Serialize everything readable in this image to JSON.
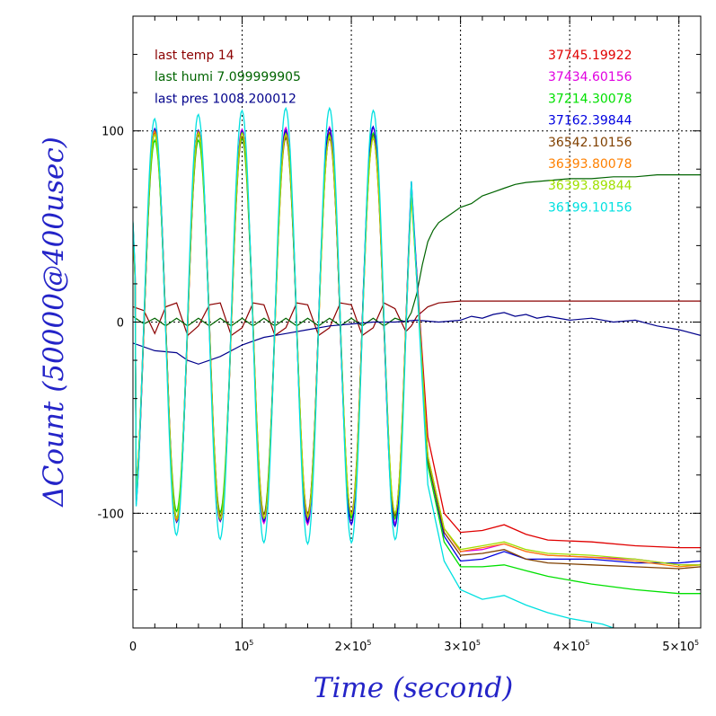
{
  "chart_data": {
    "type": "line",
    "xlabel": "Time (second)",
    "ylabel": "ΔCount (50000@400usec)",
    "xlim": [
      0,
      520000
    ],
    "ylim": [
      -160,
      160
    ],
    "grid": true,
    "x_ticks": [
      {
        "value": 0,
        "base": "0",
        "exp": ""
      },
      {
        "value": 100000,
        "base": "10",
        "exp": "5"
      },
      {
        "value": 200000,
        "base": "2×10",
        "exp": "5"
      },
      {
        "value": 300000,
        "base": "3×10",
        "exp": "5"
      },
      {
        "value": 400000,
        "base": "4×10",
        "exp": "5"
      },
      {
        "value": 500000,
        "base": "5×10",
        "exp": "5"
      }
    ],
    "y_ticks": [
      {
        "value": 100,
        "label": "100"
      },
      {
        "value": 0,
        "label": "0"
      },
      {
        "value": -100,
        "label": "-100"
      }
    ],
    "annotations": [
      {
        "text": "last temp 14",
        "color": "#8b0000"
      },
      {
        "text": "last humi 7.099999905",
        "color": "#006400"
      },
      {
        "text": "last pres 1008.200012",
        "color": "#00008b"
      }
    ],
    "oscillation": {
      "period": 40000,
      "phase_peak": 20000,
      "end_x": 255000
    },
    "series": [
      {
        "name": "37745.19922",
        "color": "#e00000",
        "amp": 100,
        "jitter": 2,
        "tail": [
          [
            270000,
            -60
          ],
          [
            285000,
            -100
          ],
          [
            300000,
            -110
          ],
          [
            320000,
            -109
          ],
          [
            340000,
            -106
          ],
          [
            360000,
            -111
          ],
          [
            380000,
            -114
          ],
          [
            420000,
            -115
          ],
          [
            460000,
            -117
          ],
          [
            500000,
            -118
          ],
          [
            520000,
            -118
          ]
        ]
      },
      {
        "name": "37434.60156",
        "color": "#e000e0",
        "amp": 102,
        "jitter": 2,
        "tail": [
          [
            270000,
            -70
          ],
          [
            285000,
            -108
          ],
          [
            300000,
            -120
          ],
          [
            320000,
            -119
          ],
          [
            340000,
            -116
          ],
          [
            360000,
            -120
          ],
          [
            380000,
            -122
          ],
          [
            420000,
            -123
          ],
          [
            460000,
            -124
          ],
          [
            500000,
            -127
          ],
          [
            520000,
            -127
          ]
        ]
      },
      {
        "name": "37214.30078",
        "color": "#00e000",
        "amp": 99,
        "jitter": 2,
        "tail": [
          [
            270000,
            -75
          ],
          [
            285000,
            -115
          ],
          [
            300000,
            -128
          ],
          [
            320000,
            -128
          ],
          [
            340000,
            -127
          ],
          [
            360000,
            -130
          ],
          [
            380000,
            -133
          ],
          [
            420000,
            -137
          ],
          [
            460000,
            -140
          ],
          [
            500000,
            -142
          ],
          [
            520000,
            -142
          ]
        ]
      },
      {
        "name": "37162.39844",
        "color": "#0000e0",
        "amp": 104,
        "jitter": 2,
        "tail": [
          [
            270000,
            -72
          ],
          [
            285000,
            -112
          ],
          [
            300000,
            -125
          ],
          [
            320000,
            -124
          ],
          [
            340000,
            -120
          ],
          [
            360000,
            -124
          ],
          [
            380000,
            -124
          ],
          [
            420000,
            -124
          ],
          [
            460000,
            -126
          ],
          [
            500000,
            -126
          ],
          [
            520000,
            -125
          ]
        ]
      },
      {
        "name": "36542.10156",
        "color": "#804000",
        "amp": 100,
        "jitter": 2,
        "tail": [
          [
            270000,
            -72
          ],
          [
            285000,
            -110
          ],
          [
            300000,
            -122
          ],
          [
            320000,
            -121
          ],
          [
            340000,
            -119
          ],
          [
            360000,
            -124
          ],
          [
            380000,
            -126
          ],
          [
            420000,
            -127
          ],
          [
            460000,
            -128
          ],
          [
            500000,
            -129
          ],
          [
            520000,
            -128
          ]
        ]
      },
      {
        "name": "36393.80078",
        "color": "#ff8000",
        "amp": 100,
        "jitter": 2,
        "tail": [
          [
            270000,
            -70
          ],
          [
            285000,
            -108
          ],
          [
            300000,
            -120
          ],
          [
            320000,
            -118
          ],
          [
            340000,
            -116
          ],
          [
            360000,
            -120
          ],
          [
            380000,
            -122
          ],
          [
            420000,
            -123
          ],
          [
            460000,
            -125
          ],
          [
            500000,
            -128
          ],
          [
            520000,
            -127
          ]
        ]
      },
      {
        "name": "36393.89844",
        "color": "#a0e000",
        "amp": 99,
        "jitter": 2,
        "tail": [
          [
            270000,
            -70
          ],
          [
            285000,
            -108
          ],
          [
            300000,
            -119
          ],
          [
            320000,
            -117
          ],
          [
            340000,
            -115
          ],
          [
            360000,
            -119
          ],
          [
            380000,
            -121
          ],
          [
            420000,
            -122
          ],
          [
            460000,
            -124
          ],
          [
            500000,
            -127
          ],
          [
            520000,
            -127
          ]
        ]
      },
      {
        "name": "36199.10156",
        "color": "#00e0e0",
        "amp": 110,
        "jitter": 4,
        "tail": [
          [
            270000,
            -85
          ],
          [
            285000,
            -125
          ],
          [
            300000,
            -140
          ],
          [
            320000,
            -145
          ],
          [
            340000,
            -143
          ],
          [
            360000,
            -148
          ],
          [
            380000,
            -152
          ],
          [
            400000,
            -155
          ],
          [
            430000,
            -158
          ],
          [
            440000,
            -160
          ]
        ]
      }
    ],
    "env_series": [
      {
        "label": "temp",
        "color": "#8b0000",
        "points": [
          [
            0,
            8
          ],
          [
            10000,
            6
          ],
          [
            20000,
            -6
          ],
          [
            30000,
            8
          ],
          [
            40000,
            10
          ],
          [
            50000,
            -7
          ],
          [
            60000,
            -2
          ],
          [
            70000,
            9
          ],
          [
            80000,
            10
          ],
          [
            90000,
            -7
          ],
          [
            100000,
            -3
          ],
          [
            110000,
            10
          ],
          [
            120000,
            9
          ],
          [
            130000,
            -7
          ],
          [
            140000,
            -3
          ],
          [
            150000,
            10
          ],
          [
            160000,
            9
          ],
          [
            170000,
            -7
          ],
          [
            180000,
            -3
          ],
          [
            190000,
            10
          ],
          [
            200000,
            9
          ],
          [
            210000,
            -7
          ],
          [
            220000,
            -3
          ],
          [
            230000,
            10
          ],
          [
            240000,
            7
          ],
          [
            250000,
            -5
          ],
          [
            255000,
            -2
          ],
          [
            260000,
            3
          ],
          [
            270000,
            8
          ],
          [
            280000,
            10
          ],
          [
            300000,
            11
          ],
          [
            350000,
            11
          ],
          [
            400000,
            11
          ],
          [
            450000,
            11
          ],
          [
            520000,
            11
          ]
        ]
      },
      {
        "label": "humi",
        "color": "#006400",
        "points": [
          [
            0,
            3
          ],
          [
            10000,
            -1
          ],
          [
            20000,
            2
          ],
          [
            30000,
            -2
          ],
          [
            40000,
            2
          ],
          [
            50000,
            -2
          ],
          [
            60000,
            2
          ],
          [
            70000,
            -2
          ],
          [
            80000,
            2
          ],
          [
            90000,
            -2
          ],
          [
            100000,
            2
          ],
          [
            110000,
            -2
          ],
          [
            120000,
            2
          ],
          [
            130000,
            -2
          ],
          [
            140000,
            2
          ],
          [
            150000,
            -2
          ],
          [
            160000,
            2
          ],
          [
            170000,
            -2
          ],
          [
            180000,
            2
          ],
          [
            190000,
            -2
          ],
          [
            200000,
            2
          ],
          [
            210000,
            -2
          ],
          [
            220000,
            2
          ],
          [
            230000,
            -2
          ],
          [
            240000,
            2
          ],
          [
            250000,
            0
          ],
          [
            255000,
            5
          ],
          [
            260000,
            15
          ],
          [
            265000,
            30
          ],
          [
            270000,
            42
          ],
          [
            275000,
            48
          ],
          [
            280000,
            52
          ],
          [
            290000,
            56
          ],
          [
            300000,
            60
          ],
          [
            310000,
            62
          ],
          [
            320000,
            66
          ],
          [
            330000,
            68
          ],
          [
            340000,
            70
          ],
          [
            350000,
            72
          ],
          [
            360000,
            73
          ],
          [
            380000,
            74
          ],
          [
            400000,
            75
          ],
          [
            420000,
            75
          ],
          [
            440000,
            76
          ],
          [
            460000,
            76
          ],
          [
            480000,
            77
          ],
          [
            500000,
            77
          ],
          [
            520000,
            77
          ]
        ]
      },
      {
        "label": "pres",
        "color": "#00008b",
        "points": [
          [
            0,
            -11
          ],
          [
            20000,
            -15
          ],
          [
            40000,
            -16
          ],
          [
            50000,
            -20
          ],
          [
            60000,
            -22
          ],
          [
            70000,
            -20
          ],
          [
            80000,
            -18
          ],
          [
            100000,
            -12
          ],
          [
            120000,
            -8
          ],
          [
            140000,
            -6
          ],
          [
            160000,
            -4
          ],
          [
            180000,
            -2
          ],
          [
            200000,
            -1
          ],
          [
            220000,
            0
          ],
          [
            240000,
            0
          ],
          [
            260000,
            1
          ],
          [
            280000,
            0
          ],
          [
            300000,
            1
          ],
          [
            310000,
            3
          ],
          [
            320000,
            2
          ],
          [
            330000,
            4
          ],
          [
            340000,
            5
          ],
          [
            350000,
            3
          ],
          [
            360000,
            4
          ],
          [
            370000,
            2
          ],
          [
            380000,
            3
          ],
          [
            400000,
            1
          ],
          [
            420000,
            2
          ],
          [
            440000,
            0
          ],
          [
            460000,
            1
          ],
          [
            480000,
            -2
          ],
          [
            500000,
            -4
          ],
          [
            520000,
            -7
          ]
        ]
      }
    ]
  }
}
